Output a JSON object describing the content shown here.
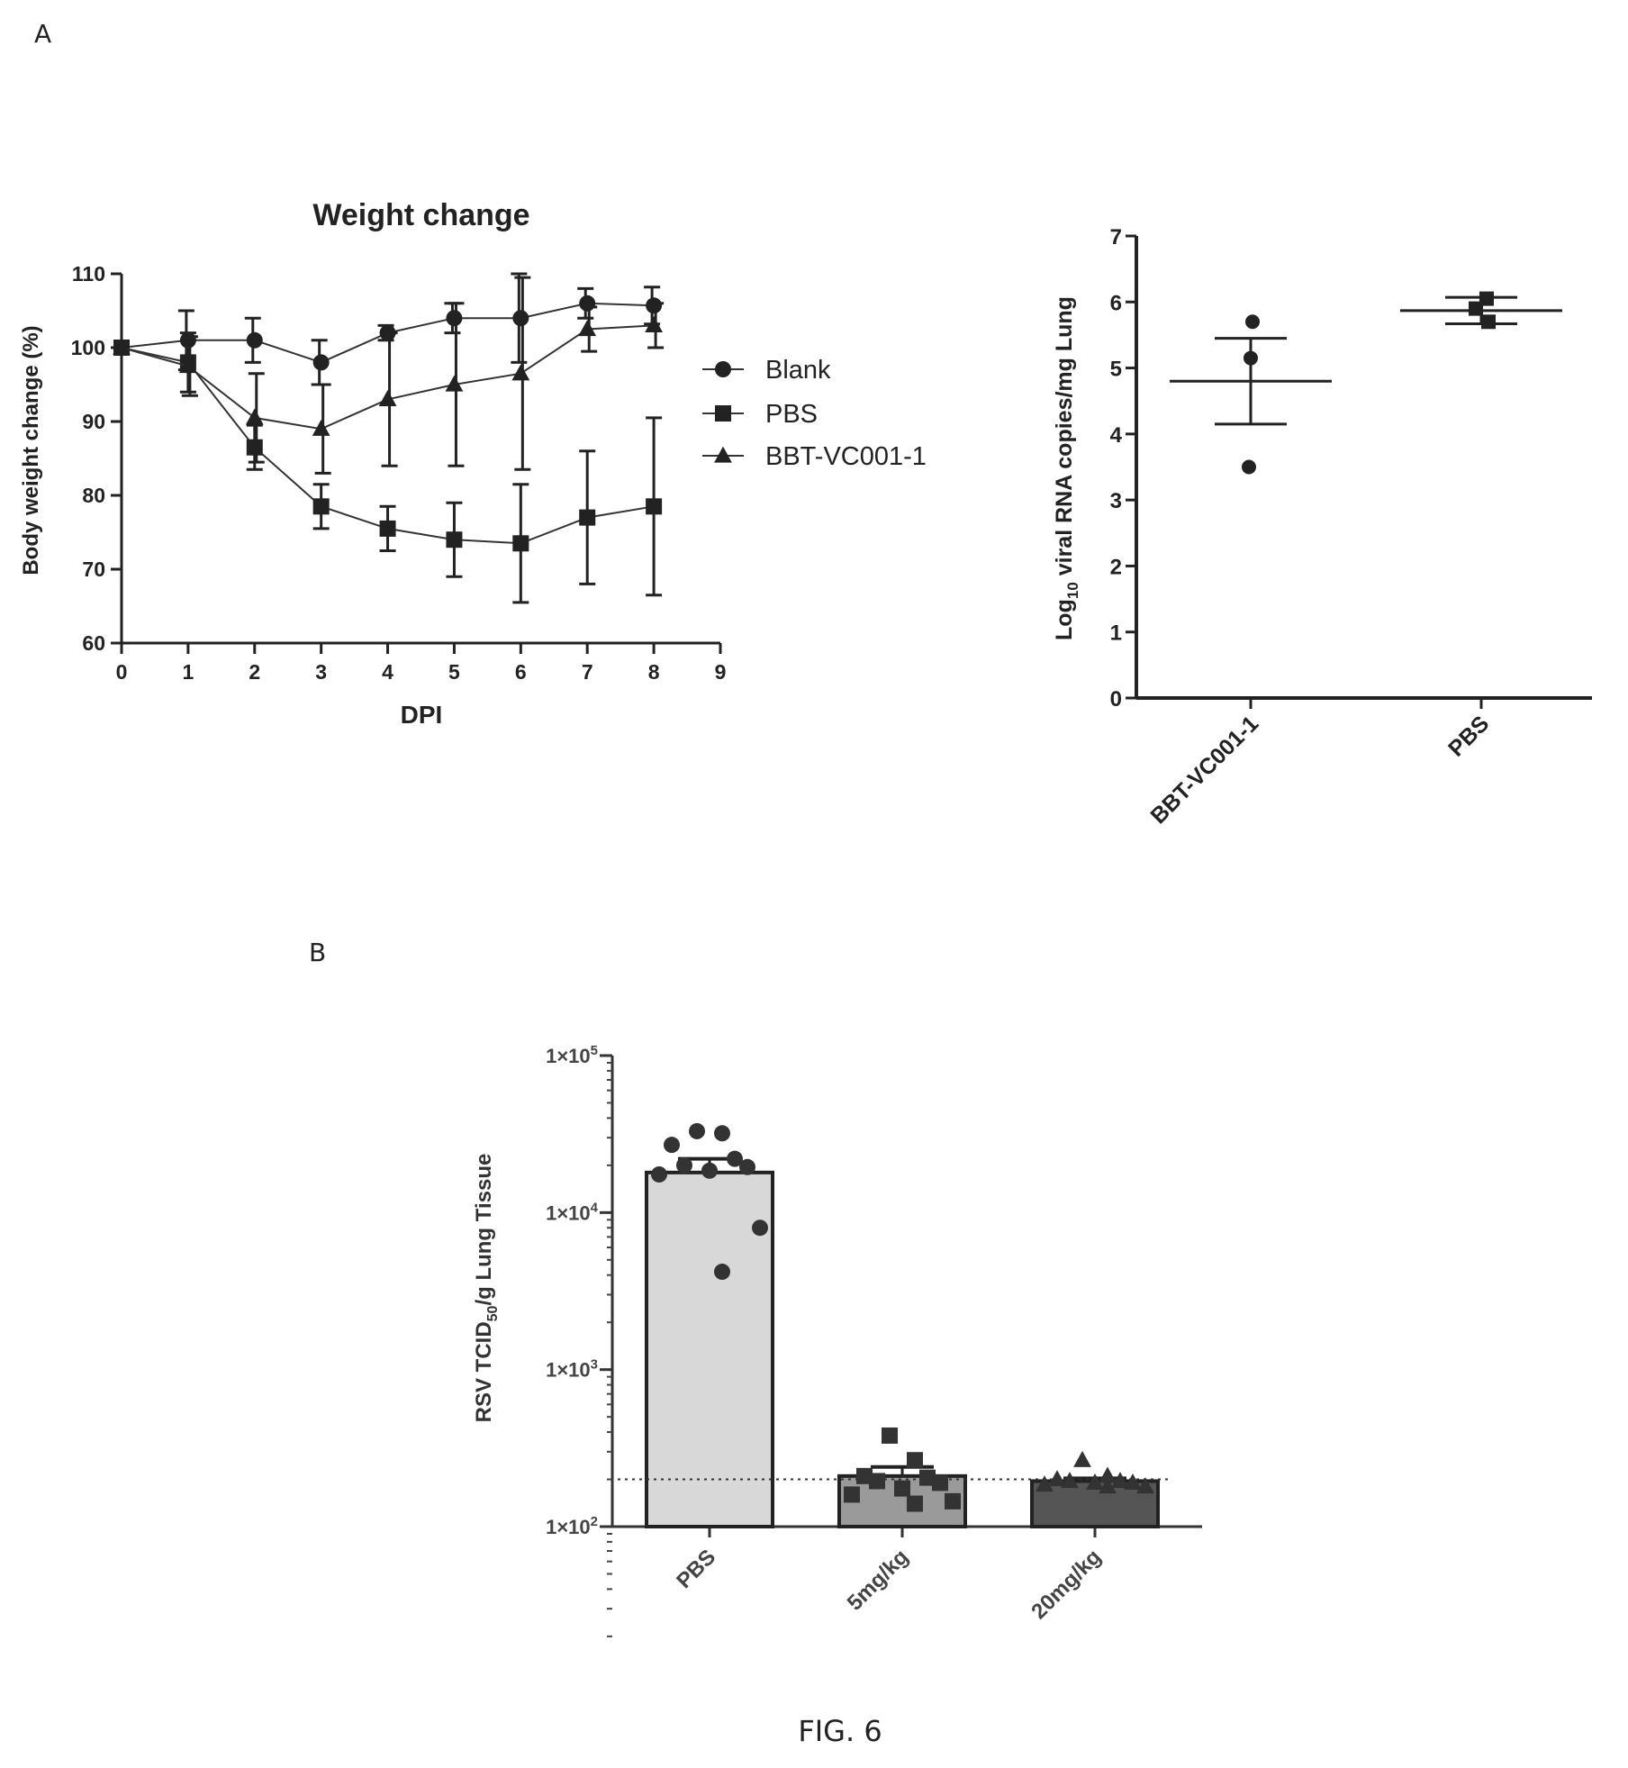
{
  "panel_labels": {
    "a": "A",
    "b": "B"
  },
  "figure_caption": "FIG. 6",
  "chart_data": [
    {
      "id": "weight",
      "type": "line",
      "title": "Weight change",
      "xlabel": "DPI",
      "ylabel": "Body weight change (%)",
      "xlim": [
        0,
        9
      ],
      "ylim": [
        60,
        110
      ],
      "xticks": [
        "0",
        "1",
        "2",
        "3",
        "4",
        "5",
        "6",
        "7",
        "8",
        "9"
      ],
      "yticks": [
        "60",
        "70",
        "80",
        "90",
        "100",
        "110"
      ],
      "legend_position": "right",
      "x": [
        0,
        1,
        2,
        3,
        4,
        5,
        6,
        7,
        8
      ],
      "series": [
        {
          "name": "Blank",
          "marker": "circle",
          "values": [
            100,
            101,
            101,
            98,
            102,
            104,
            104,
            106,
            105.7
          ],
          "errors": [
            0,
            4,
            3,
            3,
            1,
            2,
            6,
            2,
            2.5
          ]
        },
        {
          "name": "PBS",
          "marker": "square",
          "values": [
            100,
            98,
            86.5,
            78.5,
            75.5,
            74,
            73.5,
            77,
            78.5
          ],
          "errors": [
            0,
            4,
            3,
            3,
            3,
            5,
            8,
            9,
            12
          ]
        },
        {
          "name": "BBT-VC001-1",
          "marker": "triangle",
          "values": [
            100,
            97.5,
            90.5,
            89,
            93,
            95,
            96.5,
            102.5,
            103
          ],
          "errors": [
            0,
            4,
            6,
            6,
            9,
            11,
            13,
            3,
            3
          ]
        }
      ]
    },
    {
      "id": "rna",
      "type": "scatter",
      "ylabel_main": "Log",
      "ylabel_sub": "10",
      "ylabel_rest": " viral RNA copies/mg Lung",
      "ylim": [
        0,
        7
      ],
      "yticks": [
        "0",
        "1",
        "2",
        "3",
        "4",
        "5",
        "6",
        "7"
      ],
      "categories": [
        "BBT-VC001-1",
        "PBS"
      ],
      "groups": [
        {
          "name": "BBT-VC001-1",
          "marker": "circle",
          "points": [
            5.7,
            5.15,
            3.5
          ],
          "mean": 4.8,
          "sem": 0.65
        },
        {
          "name": "PBS",
          "marker": "square",
          "points": [
            6.05,
            5.9,
            5.7
          ],
          "mean": 5.87,
          "sem": 0.2
        }
      ]
    },
    {
      "id": "rsv",
      "type": "bar",
      "ylabel_main": "RSV TCID",
      "ylabel_sub": "50",
      "ylabel_rest": "/g Lung Tissue",
      "ylog": true,
      "ylim": [
        100,
        100000
      ],
      "ytick_labels": [
        {
          "mant": "1×10",
          "exp": "2"
        },
        {
          "mant": "1×10",
          "exp": "3"
        },
        {
          "mant": "1×10",
          "exp": "4"
        },
        {
          "mant": "1×10",
          "exp": "5"
        }
      ],
      "detection_limit": 200,
      "categories": [
        "PBS",
        "5mg/kg",
        "20mg/kg"
      ],
      "groups": [
        {
          "name": "PBS",
          "marker": "circle",
          "fill": "#d8d8d8",
          "value": 18000,
          "sem": 4000,
          "points": [
            33000,
            32000,
            27000,
            22000,
            20000,
            19500,
            18500,
            17500,
            8000,
            4200
          ]
        },
        {
          "name": "5mg/kg",
          "marker": "square",
          "fill": "#9a9a9a",
          "value": 210,
          "sem": 30,
          "points": [
            380,
            265,
            210,
            205,
            195,
            190,
            175,
            160,
            145,
            140
          ]
        },
        {
          "name": "20mg/kg",
          "marker": "triangle",
          "fill": "#555555",
          "value": 195,
          "sem": 8,
          "points": [
            265,
            210,
            200,
            195,
            195,
            190,
            190,
            185,
            180,
            180
          ]
        }
      ]
    }
  ]
}
